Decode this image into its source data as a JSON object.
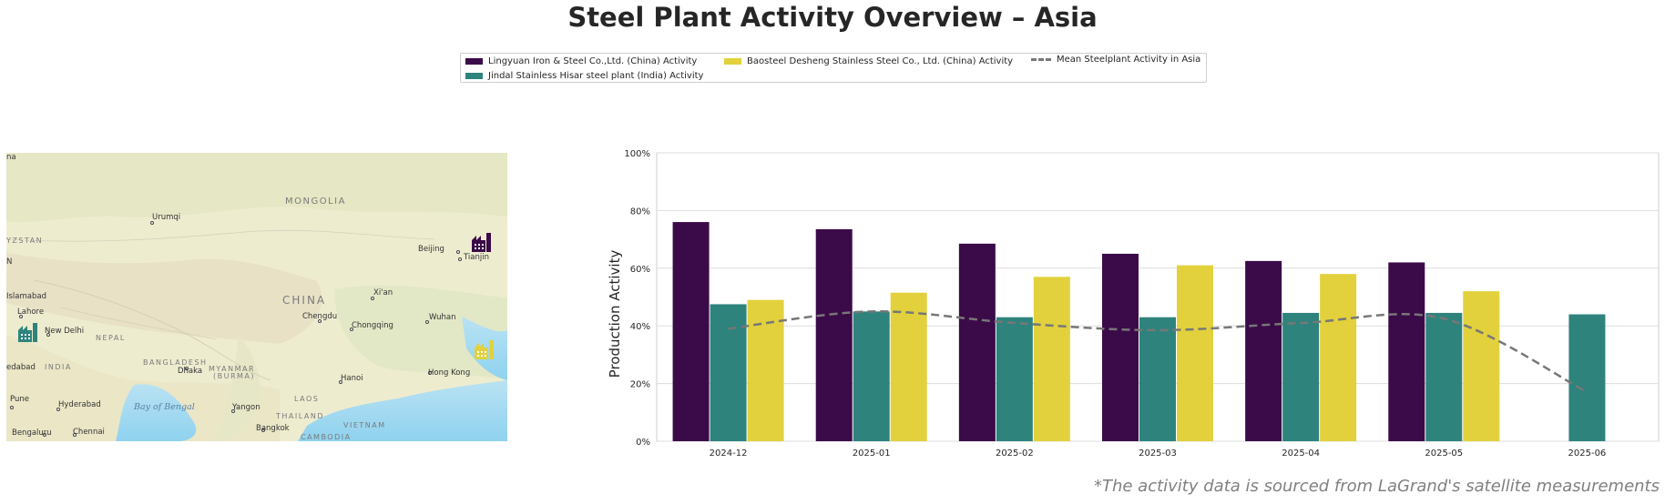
{
  "title": "Steel Plant Activity Overview – Asia",
  "footnote": "*The activity data is sourced from LaGrand's satellite measurements",
  "legend": {
    "items": [
      {
        "label": "Lingyuan Iron & Steel Co.,Ltd. (China) Activity",
        "color": "#3b0a48"
      },
      {
        "label": "Jindal Stainless Hisar steel plant (India) Activity",
        "color": "#2e837d"
      },
      {
        "label": "Baosteel Desheng Stainless Steel Co., Ltd. (China) Activity",
        "color": "#e2d13c"
      },
      {
        "label": "Mean Steelplant Activity in Asia",
        "color": "#777777"
      }
    ]
  },
  "map": {
    "countries": [
      "MONGOLIA",
      "CHINA",
      "NEPAL",
      "INDIA",
      "BANGLADESH",
      "MYANMAR",
      "(BURMA)",
      "LAOS",
      "THAILAND",
      "VIETNAM",
      "CAMBODIA",
      "YZSTAN"
    ],
    "cities": [
      "Urumqi",
      "Beijing",
      "Tianjin",
      "Xi'an",
      "Chengdu",
      "Chongqing",
      "Wuhan",
      "Islamabad",
      "Lahore",
      "New Delhi",
      "Dhaka",
      "Hanoi",
      "Hong Kong",
      "Pune",
      "Hyderabad",
      "Yangon",
      "Bangkok",
      "Bengaluru",
      "Chennai",
      "edabad",
      "na",
      "N"
    ],
    "seas": [
      "Bay of Bengal"
    ],
    "markers": [
      "factory-icon-lingyuan",
      "factory-icon-jindal",
      "factory-icon-baosteel"
    ]
  },
  "chart_data": {
    "type": "bar",
    "categories": [
      "2024-12",
      "2025-01",
      "2025-02",
      "2025-03",
      "2025-04",
      "2025-05",
      "2025-06"
    ],
    "series": [
      {
        "name": "Lingyuan Iron & Steel Co.,Ltd. (China) Activity",
        "color": "#3b0a48",
        "values": [
          76,
          73.5,
          68.5,
          65,
          62.5,
          62,
          null
        ]
      },
      {
        "name": "Jindal Stainless Hisar steel plant (India) Activity",
        "color": "#2e837d",
        "values": [
          47.5,
          45,
          43,
          43,
          44.5,
          44.5,
          44
        ]
      },
      {
        "name": "Baosteel Desheng Stainless Steel Co., Ltd. (China) Activity",
        "color": "#e2d13c",
        "values": [
          49,
          51.5,
          57,
          61,
          58,
          52,
          null
        ]
      }
    ],
    "mean_line": {
      "name": "Mean Steelplant Activity in Asia",
      "color": "#777777",
      "style": "dashed",
      "values": [
        39,
        45,
        41,
        38.5,
        41,
        42.5,
        17
      ]
    },
    "ylabel": "Production Activity",
    "xlabel": "",
    "ylim": [
      0,
      100
    ],
    "yticks": [
      "0%",
      "20%",
      "40%",
      "60%",
      "80%",
      "100%"
    ],
    "ytick_values": [
      0,
      20,
      40,
      60,
      80,
      100
    ],
    "grid": "horizontal"
  }
}
